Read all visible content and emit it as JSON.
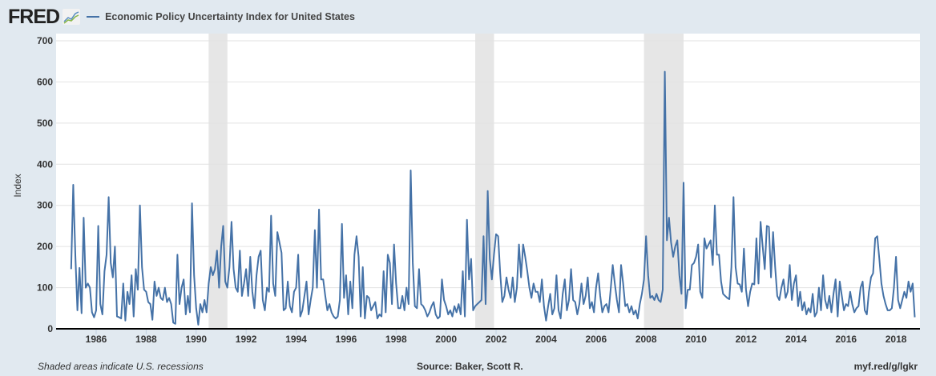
{
  "header": {
    "logo_text": "FRED",
    "legend_label": "Economic Policy Uncertainty Index for United States"
  },
  "footer": {
    "note": "Shaded areas indicate U.S. recessions",
    "source": "Source: Baker, Scott R.",
    "link": "myf.red/g/lgkr"
  },
  "colors": {
    "series": "#4572a7",
    "recession": "#e6e6e6",
    "background": "#e1e9f0"
  },
  "chart_data": {
    "type": "line",
    "title": "",
    "ylabel": "Index",
    "xlabel": "",
    "ylim": [
      0,
      700
    ],
    "yticks": [
      0,
      100,
      200,
      300,
      400,
      500,
      600,
      700
    ],
    "xticks": [
      "1986",
      "1988",
      "1990",
      "1992",
      "1994",
      "1996",
      "1998",
      "2000",
      "2002",
      "2004",
      "2006",
      "2008",
      "2010",
      "2012",
      "2014",
      "2016",
      "2018"
    ],
    "grid": true,
    "legend": "top-left",
    "frequency": "monthly",
    "recessions": [
      [
        "1990-07",
        "1991-03"
      ],
      [
        "2001-03",
        "2001-11"
      ],
      [
        "2007-12",
        "2009-06"
      ]
    ],
    "series": [
      {
        "name": "Economic Policy Uncertainty Index for United States",
        "values_by_year": {
          "1985": [
            145,
            350,
            180,
            45,
            148,
            38,
            270,
            100,
            110,
            100,
            40,
            28
          ],
          "1986": [
            45,
            250,
            60,
            35,
            140,
            180,
            320,
            160,
            125,
            200,
            30,
            28
          ],
          "1987": [
            25,
            110,
            20,
            90,
            60,
            130,
            30,
            145,
            95,
            300,
            150,
            95
          ],
          "1988": [
            90,
            65,
            60,
            22,
            115,
            80,
            100,
            75,
            70,
            100,
            65,
            75
          ],
          "1989": [
            60,
            15,
            12,
            180,
            60,
            100,
            120,
            35,
            80,
            40,
            305,
            130
          ],
          "1990": [
            50,
            10,
            60,
            40,
            70,
            40,
            110,
            150,
            130,
            145,
            190,
            100
          ],
          "1991": [
            200,
            250,
            115,
            100,
            150,
            260,
            145,
            100,
            90,
            190,
            80,
            110
          ],
          "1992": [
            145,
            80,
            175,
            90,
            50,
            130,
            175,
            190,
            70,
            45,
            100,
            90
          ],
          "1993": [
            275,
            110,
            80,
            235,
            210,
            185,
            45,
            50,
            115,
            55,
            40,
            90
          ],
          "1994": [
            100,
            180,
            30,
            45,
            80,
            115,
            35,
            70,
            100,
            240,
            100,
            290
          ],
          "1995": [
            120,
            120,
            80,
            45,
            60,
            40,
            30,
            25,
            30,
            70,
            255,
            75
          ],
          "1996": [
            130,
            35,
            115,
            50,
            180,
            225,
            175,
            30,
            150,
            25,
            80,
            75
          ],
          "1997": [
            45,
            55,
            65,
            25,
            35,
            30,
            140,
            40,
            180,
            160,
            60,
            205
          ],
          "1998": [
            110,
            50,
            50,
            80,
            45,
            100,
            60,
            385,
            160,
            55,
            50,
            145
          ],
          "1999": [
            60,
            55,
            45,
            30,
            40,
            55,
            65,
            35,
            25,
            30,
            120,
            70
          ],
          "2000": [
            55,
            35,
            45,
            30,
            55,
            40,
            60,
            35,
            140,
            30,
            265,
            120
          ],
          "2001": [
            170,
            45,
            55,
            60,
            65,
            70,
            225,
            60,
            335,
            170,
            120,
            180
          ],
          "2002": [
            230,
            225,
            135,
            65,
            80,
            125,
            95,
            75,
            125,
            65,
            100,
            205
          ],
          "2003": [
            125,
            205,
            175,
            140,
            100,
            75,
            110,
            90,
            90,
            65,
            120,
            55
          ],
          "2004": [
            20,
            55,
            85,
            35,
            50,
            130,
            45,
            25,
            85,
            120,
            45,
            70
          ],
          "2005": [
            145,
            70,
            65,
            35,
            60,
            110,
            60,
            80,
            125,
            50,
            65,
            40
          ],
          "2006": [
            100,
            135,
            80,
            40,
            55,
            60,
            40,
            95,
            155,
            110,
            70,
            40
          ],
          "2007": [
            155,
            110,
            55,
            60,
            40,
            55,
            35,
            45,
            25,
            60,
            85,
            120
          ],
          "2008": [
            225,
            130,
            75,
            80,
            70,
            85,
            70,
            65,
            95,
            625,
            215,
            270
          ],
          "2009": [
            210,
            175,
            200,
            215,
            130,
            85,
            355,
            50,
            95,
            95,
            155,
            160
          ],
          "2010": [
            175,
            205,
            90,
            75,
            220,
            195,
            205,
            215,
            155,
            300,
            180,
            180
          ],
          "2011": [
            115,
            85,
            80,
            75,
            72,
            150,
            320,
            150,
            110,
            108,
            90,
            195
          ],
          "2012": [
            95,
            55,
            90,
            110,
            108,
            220,
            110,
            260,
            200,
            145,
            250,
            248
          ],
          "2013": [
            125,
            235,
            150,
            80,
            70,
            100,
            120,
            75,
            90,
            155,
            70,
            110
          ],
          "2014": [
            130,
            55,
            90,
            45,
            65,
            35,
            50,
            40,
            85,
            30,
            40,
            100
          ],
          "2015": [
            45,
            130,
            70,
            50,
            80,
            40,
            85,
            120,
            30,
            115,
            80,
            45
          ],
          "2016": [
            60,
            55,
            90,
            60,
            40,
            50,
            55,
            100,
            115,
            45,
            35,
            90
          ],
          "2017": [
            125,
            135,
            220,
            225,
            170,
            110,
            80,
            60,
            45,
            45,
            50,
            100
          ],
          "2018": [
            175,
            70,
            50,
            70,
            90,
            75,
            115,
            90,
            110,
            28
          ]
        }
      }
    ]
  }
}
